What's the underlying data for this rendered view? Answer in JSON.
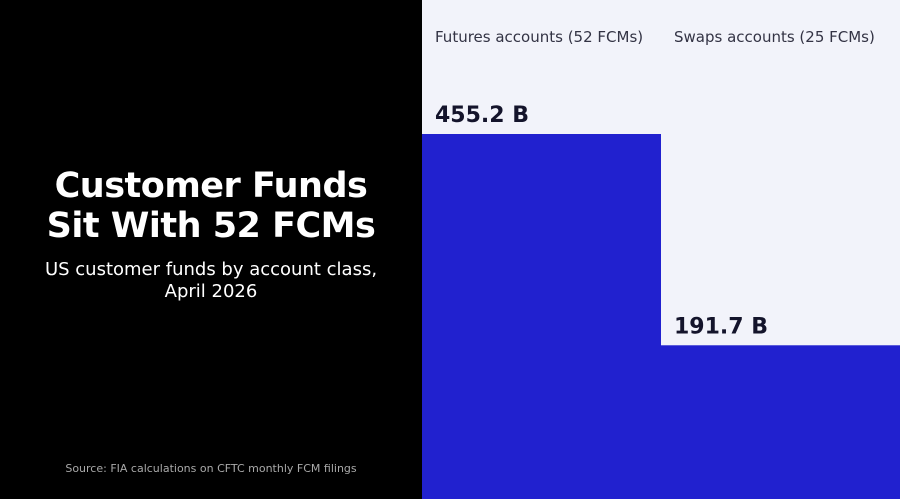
{
  "headline": {
    "line1": "Customer Funds",
    "line2": "Sit With 52 FCMs"
  },
  "subtitle": {
    "line1": "US customer funds by account class,",
    "line2": "April 2026"
  },
  "source": "Source: FIA calculations on CFTC monthly FCM filings",
  "colors": {
    "left_background": "#000000",
    "chart_background": "#f2f3fa",
    "bar": "#2121cf",
    "label_text": "#14142b",
    "category_text": "#333344"
  },
  "chart_data": {
    "type": "bar",
    "categories": [
      "Futures accounts (52 FCMs)",
      "Swaps accounts (25 FCMs)"
    ],
    "values": [
      455.2,
      191.7
    ],
    "value_labels": [
      "455.2 B",
      "191.7 B"
    ],
    "title": "",
    "xlabel": "",
    "ylabel": "",
    "grid": false,
    "legend": "none"
  }
}
